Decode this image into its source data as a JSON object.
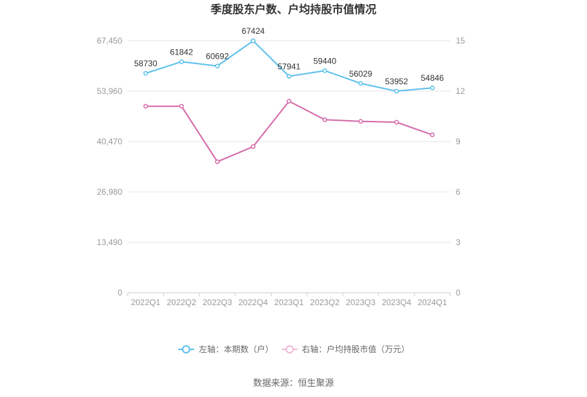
{
  "page": {
    "title": "季度股东户数、户均持股市值情况",
    "source": "数据来源：恒生聚源"
  },
  "colors": {
    "left_series": "#5bc0eb",
    "right_series": "#d56aa8",
    "grid": "#e6e6ee",
    "axis": "#cccccc"
  },
  "chart_data": {
    "type": "line",
    "title": "季度股东户数、户均持股市值情况",
    "categories": [
      "2022Q1",
      "2022Q2",
      "2022Q3",
      "2022Q4",
      "2023Q1",
      "2023Q2",
      "2023Q3",
      "2023Q4",
      "2024Q1"
    ],
    "left_axis": {
      "ticks": [
        "0",
        "13,490",
        "26,980",
        "40,470",
        "53,960",
        "67,450"
      ],
      "ylim": [
        0,
        67450
      ]
    },
    "right_axis": {
      "ticks": [
        "0",
        "3",
        "6",
        "9",
        "12",
        "15"
      ],
      "ylim": [
        0,
        15
      ]
    },
    "series": [
      {
        "name": "左轴：本期数（户）",
        "axis": "left",
        "values": [
          58730,
          61842,
          60692,
          67424,
          57941,
          59440,
          56029,
          53952,
          54846
        ],
        "labels": [
          "58730",
          "61842",
          "60692",
          "67424",
          "57941",
          "59440",
          "56029",
          "53952",
          "54846"
        ]
      },
      {
        "name": "右轴：户均持股市值（万元）",
        "axis": "right",
        "values": [
          11.1,
          11.1,
          7.8,
          8.7,
          11.4,
          10.3,
          10.2,
          10.15,
          9.4
        ]
      }
    ],
    "grid": true,
    "legend_position": "bottom"
  }
}
